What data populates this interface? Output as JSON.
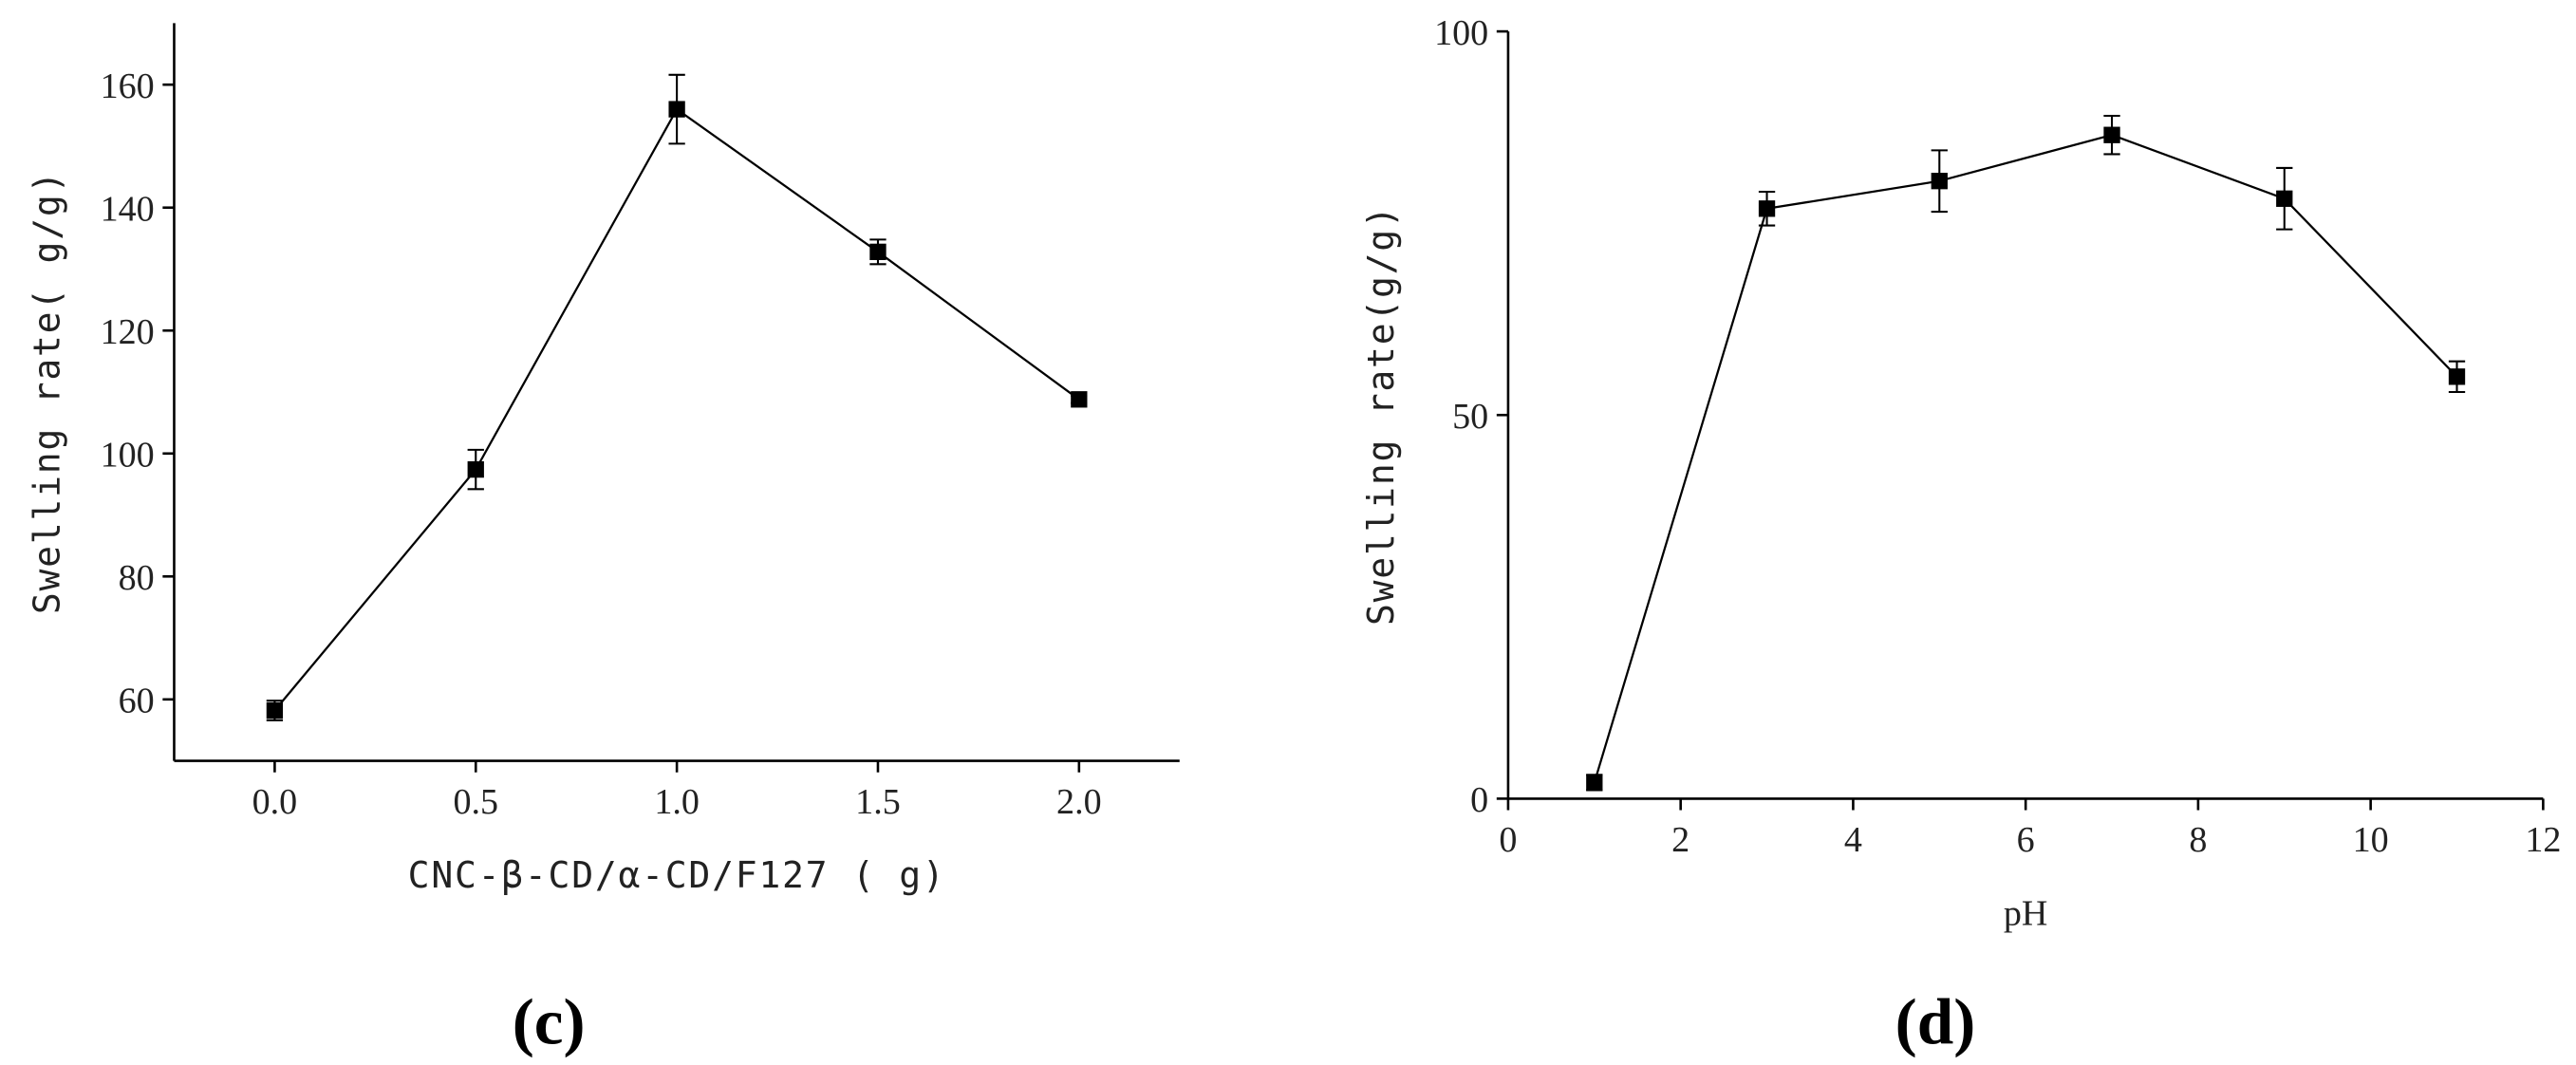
{
  "chart_data": [
    {
      "type": "line",
      "caption": "(c)",
      "x_label": "CNC-β-CD/α-CD/F127 ( g)",
      "y_label": "Swelling rate( g/g)",
      "xlim": [
        -0.25,
        2.25
      ],
      "ylim": [
        50,
        170
      ],
      "xticks": [
        {
          "value": 0,
          "label": "0.0"
        },
        {
          "value": 0.5,
          "label": "0.5"
        },
        {
          "value": 1,
          "label": "1.0"
        },
        {
          "value": 1.5,
          "label": "1.5"
        },
        {
          "value": 2,
          "label": "2.0"
        }
      ],
      "yticks": [
        60,
        80,
        100,
        120,
        140,
        160
      ],
      "x": [
        0,
        0.5,
        1,
        1.5,
        2
      ],
      "series": [
        {
          "color": "#000000",
          "values": [
            58.2,
            97.4,
            156,
            132.8,
            108.8
          ],
          "errors": [
            1.6,
            3.2,
            5.6,
            2,
            0.6
          ]
        }
      ]
    },
    {
      "type": "line",
      "caption": "(d)",
      "x_label": "pH",
      "y_label": "Swelling rate(g/g)",
      "xlim": [
        0,
        12
      ],
      "ylim": [
        0,
        100
      ],
      "xticks": [
        0,
        2,
        4,
        6,
        8,
        10,
        12
      ],
      "yticks": [
        0,
        50,
        100
      ],
      "x": [
        1,
        3,
        5,
        7,
        9,
        11
      ],
      "series": [
        {
          "color": "#000000",
          "values": [
            2.1,
            76.9,
            80.5,
            86.5,
            78.2,
            55
          ],
          "errors": [
            1,
            2.2,
            4,
            2.5,
            4,
            2
          ]
        }
      ]
    }
  ]
}
